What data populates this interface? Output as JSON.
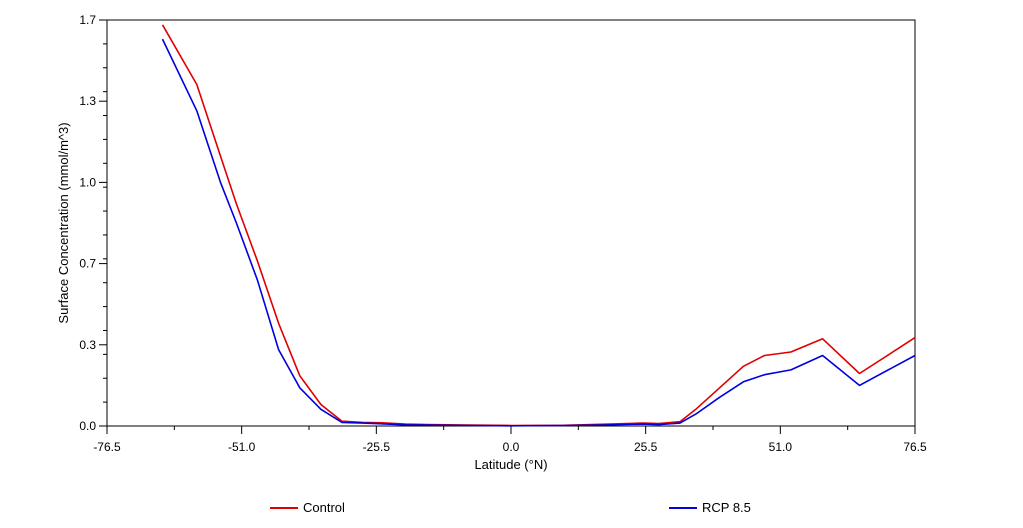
{
  "chart_data": {
    "type": "line",
    "title": "",
    "xlabel": "Latitude (°N)",
    "ylabel": "Surface Concentration (mmol/m^3)",
    "xlim": [
      -76.5,
      76.5
    ],
    "ylim": [
      0.0,
      1.7
    ],
    "x_ticks": [
      "-76.5",
      "-51.0",
      "-25.5",
      "0.0",
      "25.5",
      "51.0",
      "76.5"
    ],
    "y_ticks": [
      "0.0",
      "0.3",
      "0.7",
      "1.0",
      "1.3",
      "1.7"
    ],
    "grid": false,
    "legend_position": "bottom",
    "series": [
      {
        "name": "Control",
        "color": "#e00000",
        "x": [
          -66.0,
          -59.5,
          -55.0,
          -52.0,
          -48.0,
          -44.0,
          -40.0,
          -36.0,
          -32.0,
          -28.0,
          -24.0,
          -20.0,
          -16.0,
          -8.0,
          0.0,
          10.0,
          17.0,
          25.0,
          28.0,
          32.0,
          35.0,
          39.5,
          44.0,
          48.0,
          53.0,
          59.0,
          66.0,
          76.5
        ],
        "y": [
          1.68,
          1.43,
          1.13,
          0.93,
          0.69,
          0.43,
          0.21,
          0.09,
          0.02,
          0.015,
          0.013,
          0.008,
          0.006,
          0.004,
          0.002,
          0.003,
          0.007,
          0.012,
          0.01,
          0.018,
          0.07,
          0.16,
          0.25,
          0.295,
          0.31,
          0.365,
          0.22,
          0.37
        ]
      },
      {
        "name": "RCP 8.5",
        "color": "#0000e0",
        "x": [
          -66.0,
          -59.5,
          -55.0,
          -52.0,
          -48.0,
          -44.0,
          -40.0,
          -36.0,
          -32.0,
          -28.0,
          -24.0,
          -20.0,
          -16.0,
          -8.0,
          0.0,
          10.0,
          17.0,
          25.0,
          28.0,
          32.0,
          35.0,
          39.5,
          44.0,
          48.0,
          53.0,
          59.0,
          66.0,
          76.5
        ],
        "y": [
          1.62,
          1.32,
          1.02,
          0.85,
          0.61,
          0.32,
          0.16,
          0.07,
          0.015,
          0.012,
          0.009,
          0.005,
          0.004,
          0.002,
          0.001,
          0.002,
          0.004,
          0.008,
          0.006,
          0.012,
          0.05,
          0.12,
          0.185,
          0.215,
          0.235,
          0.295,
          0.17,
          0.295
        ]
      }
    ]
  }
}
